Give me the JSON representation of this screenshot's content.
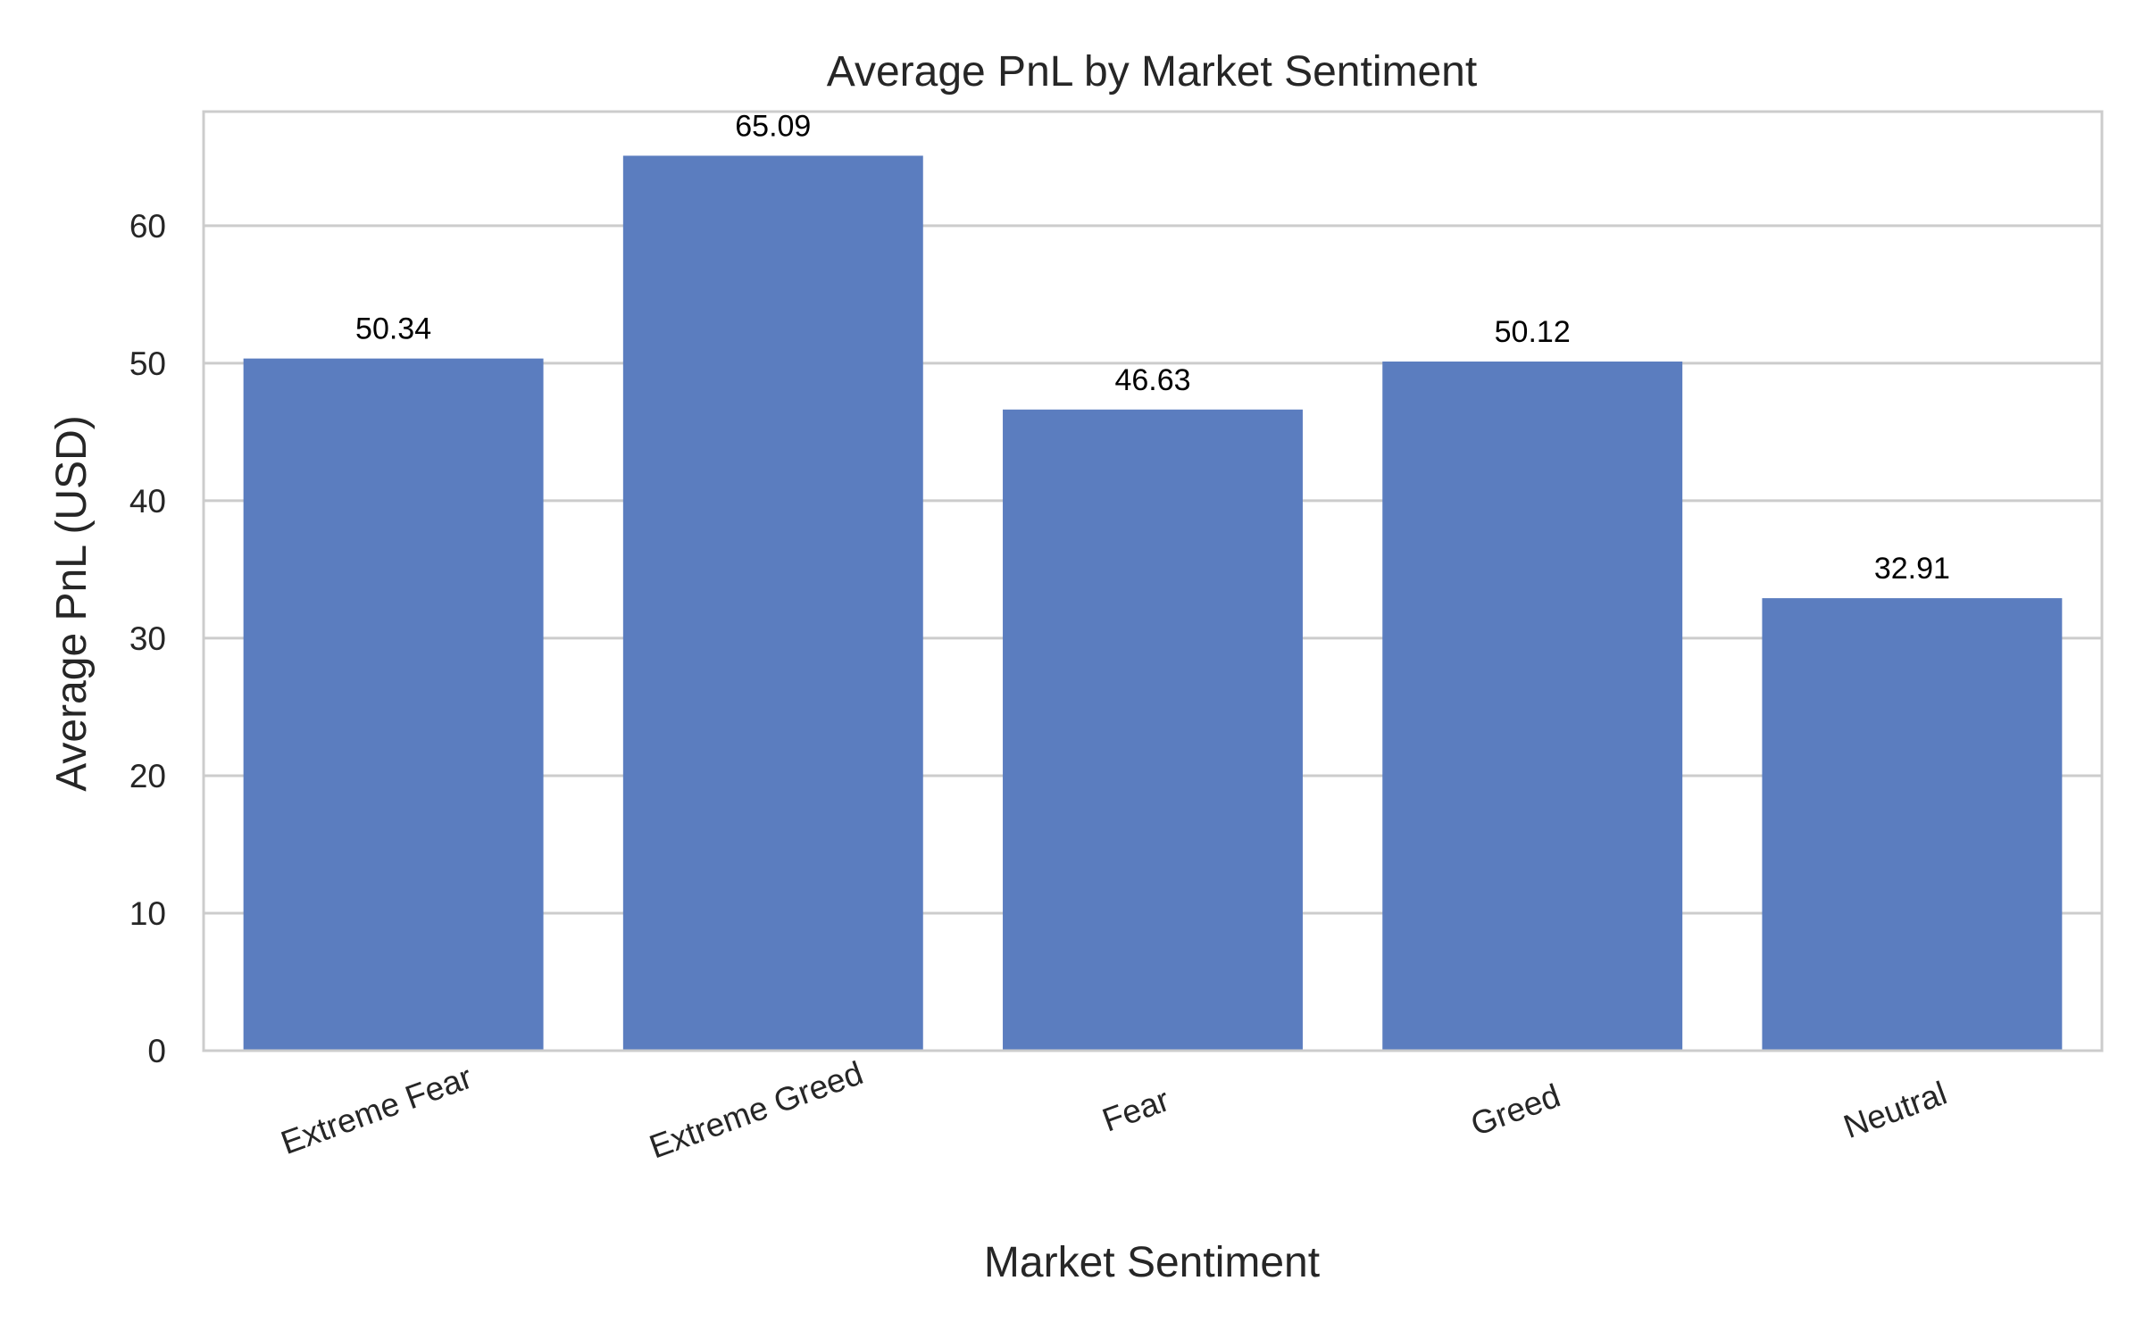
{
  "chart_data": {
    "type": "bar",
    "title": "Average PnL by Market Sentiment",
    "xlabel": "Market Sentiment",
    "ylabel": "Average PnL (USD)",
    "categories": [
      "Extreme Fear",
      "Extreme Greed",
      "Fear",
      "Greed",
      "Neutral"
    ],
    "values": [
      50.34,
      65.09,
      46.63,
      50.12,
      32.91
    ],
    "data_labels": [
      "50.34",
      "65.09",
      "46.63",
      "50.12",
      "32.91"
    ],
    "ylim": [
      0,
      68.3
    ],
    "yticks": [
      0,
      10,
      20,
      30,
      40,
      50,
      60
    ],
    "grid": "horizontal",
    "legend": "none",
    "colors": {
      "bar": "#5b7dbf",
      "grid": "#cccccc",
      "spine": "#cccccc",
      "text": "#262626"
    }
  }
}
